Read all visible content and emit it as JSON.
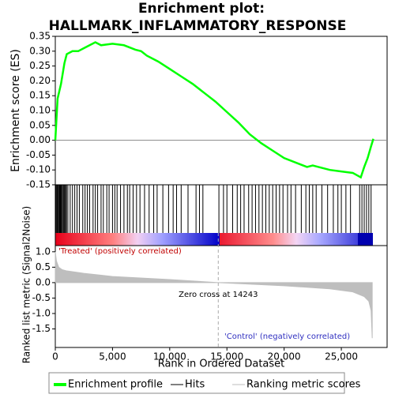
{
  "chart_data": [
    {
      "type": "line",
      "title": "Enrichment plot:",
      "subtitle": "HALLMARK_INFLAMMATORY_RESPONSE",
      "ylabel": "Enrichment score (ES)",
      "x": [
        0,
        200,
        500,
        800,
        1000,
        1500,
        2000,
        2500,
        3000,
        3500,
        4000,
        5000,
        6000,
        7000,
        7500,
        8000,
        9000,
        10000,
        11000,
        12000,
        13000,
        14000,
        15000,
        16000,
        17000,
        18000,
        19000,
        20000,
        21000,
        22000,
        22500,
        23000,
        24000,
        25000,
        26000,
        26700,
        27000,
        27300,
        27600,
        27800
      ],
      "series": [
        {
          "name": "Enrichment profile",
          "color": "#00ff00",
          "values": [
            0.0,
            0.14,
            0.19,
            0.26,
            0.29,
            0.3,
            0.3,
            0.31,
            0.32,
            0.33,
            0.32,
            0.325,
            0.32,
            0.305,
            0.3,
            0.285,
            0.265,
            0.24,
            0.215,
            0.19,
            0.16,
            0.13,
            0.095,
            0.06,
            0.02,
            -0.01,
            -0.035,
            -0.06,
            -0.075,
            -0.09,
            -0.085,
            -0.09,
            -0.1,
            -0.105,
            -0.11,
            -0.125,
            -0.09,
            -0.06,
            -0.02,
            0.005
          ]
        }
      ],
      "xlim": [
        0,
        29000
      ],
      "ylim": [
        -0.15,
        0.35
      ],
      "yticks": [
        0.35,
        {
          "value": 0.3,
          "label": "0.30"
        },
        0.25,
        {
          "value": 0.2,
          "label": "0.20"
        },
        0.15,
        {
          "value": 0.1,
          "label": "0.10"
        },
        0.05,
        {
          "value": 0,
          "label": "0.00"
        },
        -0.05,
        {
          "value": -0.1,
          "label": "-0.10"
        },
        -0.15
      ]
    },
    {
      "type": "rug",
      "xlim": [
        0,
        29000
      ],
      "series": [
        {
          "name": "Hits",
          "color": "#000000",
          "x": [
            50,
            120,
            180,
            250,
            300,
            380,
            450,
            520,
            600,
            680,
            750,
            820,
            900,
            980,
            1100,
            1300,
            1500,
            1700,
            1900,
            2100,
            2400,
            2600,
            2800,
            3000,
            3300,
            3500,
            3700,
            4000,
            4200,
            4500,
            4700,
            5000,
            5200,
            5400,
            5700,
            6000,
            6300,
            6500,
            6800,
            7100,
            7400,
            7800,
            8200,
            8600,
            8900,
            9400,
            9900,
            10300,
            10600,
            11000,
            11600,
            12300,
            12600,
            12900,
            14300,
            14700,
            15000,
            15500,
            15900,
            16200,
            16500,
            16900,
            17200,
            17500,
            17800,
            18100,
            18400,
            18700,
            19000,
            19300,
            19600,
            19900,
            20300,
            20600,
            21000,
            21500,
            21900,
            22200,
            22500,
            22800,
            23300,
            23800,
            24300,
            24700,
            25000,
            25400,
            25800,
            26600,
            26800,
            27000,
            27200,
            27400,
            27600
          ]
        }
      ]
    },
    {
      "type": "area",
      "ylabel": "Ranked list metric (Signal2Noise)",
      "xlabel": "Rank in Ordered Dataset",
      "x": [
        0,
        100,
        300,
        600,
        1000,
        2500,
        5000,
        10000,
        14243,
        20000,
        24000,
        26000,
        27000,
        27400,
        27600,
        27700
      ],
      "series": [
        {
          "name": "Ranking metric scores",
          "color": "#bebebe",
          "values": [
            1.0,
            0.7,
            0.5,
            0.42,
            0.38,
            0.3,
            0.2,
            0.1,
            0,
            -0.1,
            -0.2,
            -0.3,
            -0.45,
            -0.6,
            -0.9,
            -1.8
          ]
        }
      ],
      "xlim": [
        0,
        29000
      ],
      "ylim": [
        -2.1,
        1.2
      ],
      "yticks": [
        {
          "value": 1,
          "label": "1.0"
        },
        0.5,
        {
          "value": 0,
          "label": "0.0"
        },
        -0.5,
        {
          "value": -1,
          "label": "-1.0"
        },
        -1.5
      ],
      "xticks": [
        0,
        {
          "value": 5000,
          "label": "5,000"
        },
        {
          "value": 10000,
          "label": "10,000"
        },
        {
          "value": 15000,
          "label": "15,000"
        },
        {
          "value": 20000,
          "label": "20,000"
        },
        {
          "value": 25000,
          "label": "25,000"
        }
      ],
      "zero_cross": 14243,
      "zero_cross_label": "Zero cross at 14243",
      "pos_label": "'Treated' (positively correlated)",
      "neg_label": "'Control' (negatively correlated)"
    }
  ]
}
